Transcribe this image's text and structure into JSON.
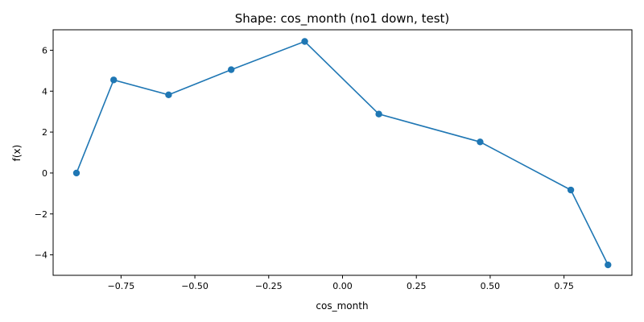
{
  "chart_data": {
    "type": "line",
    "title": "Shape: cos_month (no1 down, test)",
    "xlabel": "cos_month",
    "ylabel": "f(x)",
    "xlim": [
      -0.98,
      0.98
    ],
    "ylim": [
      -5.0,
      7.0
    ],
    "xticks": [
      -0.75,
      -0.5,
      -0.25,
      0.0,
      0.25,
      0.5,
      0.75
    ],
    "xtick_labels": [
      "−0.75",
      "−0.50",
      "−0.25",
      "0.00",
      "0.25",
      "0.50",
      "0.75"
    ],
    "yticks": [
      -4,
      -2,
      0,
      2,
      4,
      6
    ],
    "ytick_labels": [
      "−4",
      "−2",
      "0",
      "2",
      "4",
      "6"
    ],
    "grid": false,
    "series": [
      {
        "color": "#1f77b4",
        "marker": "circle",
        "x": [
          -0.901,
          -0.775,
          -0.589,
          -0.377,
          -0.128,
          0.123,
          0.466,
          0.773,
          0.899
        ],
        "y": [
          0.0,
          4.55,
          3.82,
          5.05,
          6.43,
          2.88,
          1.52,
          -0.83,
          -4.49
        ]
      }
    ]
  }
}
